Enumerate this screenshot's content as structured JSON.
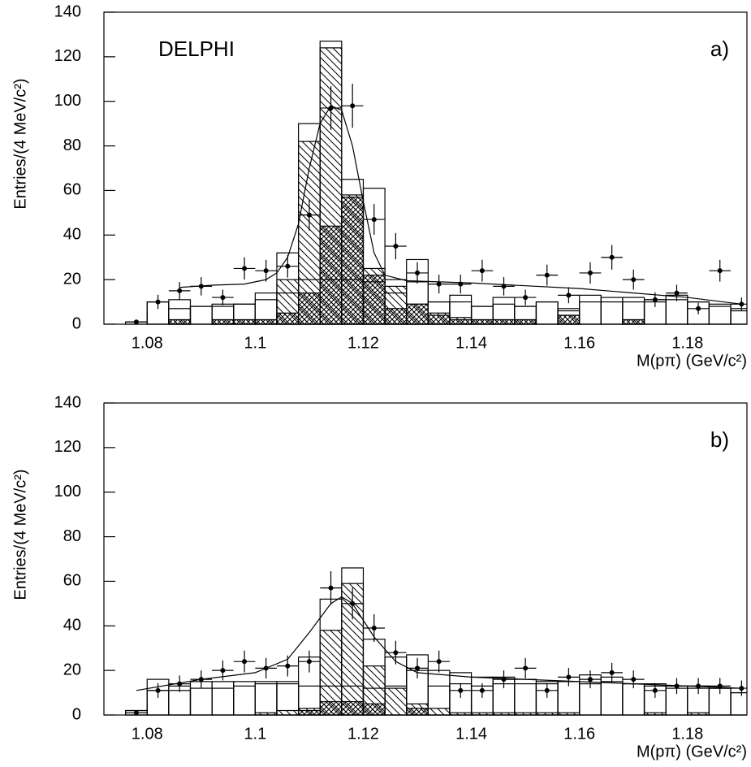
{
  "chart_data": [
    {
      "type": "histogram",
      "title": "DELPHI",
      "label": "a)",
      "xlabel": "M(pπ) (GeV/c²)",
      "ylabel": "Entries/(4 MeV/c²)",
      "xlim": [
        1.072,
        1.191
      ],
      "ylim": [
        0,
        140
      ],
      "xticks": [
        1.08,
        1.1,
        1.12,
        1.14,
        1.16,
        1.18
      ],
      "yticks": [
        0,
        20,
        40,
        60,
        80,
        100,
        120,
        140
      ],
      "bins": [
        1.076,
        1.08,
        1.084,
        1.088,
        1.092,
        1.096,
        1.1,
        1.104,
        1.108,
        1.112,
        1.116,
        1.12,
        1.124,
        1.128,
        1.132,
        1.136,
        1.14,
        1.144,
        1.148,
        1.152,
        1.156,
        1.16,
        1.164,
        1.168,
        1.172,
        1.176,
        1.18,
        1.184,
        1.188,
        1.192
      ],
      "series": [
        {
          "color": "#000000",
          "pattern": "none",
          "values": [
            1,
            10,
            11,
            8,
            9,
            9,
            14,
            32,
            90,
            127,
            65,
            61,
            20,
            29,
            10,
            13,
            8,
            12,
            8,
            10,
            7,
            13,
            12,
            10,
            11,
            13,
            10,
            9,
            7
          ]
        },
        {
          "color": "#000000",
          "pattern": "hatch",
          "values": [
            0,
            0,
            2,
            0,
            2,
            2,
            2,
            20,
            82,
            124,
            58,
            25,
            17,
            9,
            5,
            3,
            2,
            2,
            2,
            0,
            4,
            0,
            0,
            2,
            0,
            0,
            0,
            0,
            0
          ]
        },
        {
          "color": "#000000",
          "pattern": "cross",
          "values": [
            0,
            0,
            2,
            0,
            2,
            2,
            2,
            5,
            14,
            44,
            57,
            22,
            7,
            9,
            4,
            2,
            2,
            2,
            2,
            0,
            4,
            0,
            0,
            2,
            0,
            0,
            0,
            0,
            0
          ]
        },
        {
          "color": "#000000",
          "pattern": "none",
          "values": [
            0,
            10,
            7,
            8,
            8,
            9,
            11,
            14,
            20,
            20,
            20,
            19,
            14,
            19,
            10,
            10,
            8,
            9,
            8,
            10,
            6,
            10,
            10,
            12,
            10,
            11,
            10,
            8,
            6
          ]
        }
      ],
      "points": {
        "color": "#000000",
        "x": [
          1.078,
          1.082,
          1.086,
          1.09,
          1.094,
          1.098,
          1.102,
          1.106,
          1.11,
          1.114,
          1.118,
          1.122,
          1.126,
          1.13,
          1.134,
          1.138,
          1.142,
          1.146,
          1.15,
          1.154,
          1.158,
          1.162,
          1.166,
          1.17,
          1.174,
          1.178,
          1.182,
          1.186,
          1.19
        ],
        "values": [
          1,
          10,
          15,
          17,
          12,
          25,
          24,
          26,
          49,
          97,
          98,
          47,
          35,
          23,
          18,
          18,
          24,
          17,
          12,
          22,
          13,
          23,
          30,
          20,
          11,
          14,
          7,
          24,
          9
        ],
        "errors": [
          1,
          3.2,
          3.9,
          4.1,
          3.5,
          5,
          4.9,
          5.1,
          7,
          9.8,
          9.9,
          6.9,
          5.9,
          4.8,
          4.2,
          4.2,
          4.9,
          4.1,
          3.5,
          4.7,
          3.6,
          4.8,
          5.5,
          4.5,
          3.3,
          3.7,
          2.6,
          4.9,
          3
        ]
      },
      "fit": {
        "color": "#000000",
        "x": [
          1.086,
          1.092,
          1.098,
          1.102,
          1.104,
          1.106,
          1.108,
          1.11,
          1.112,
          1.114,
          1.116,
          1.118,
          1.12,
          1.122,
          1.124,
          1.128,
          1.14,
          1.16,
          1.17,
          1.18,
          1.19
        ],
        "values": [
          16.5,
          17.5,
          18,
          20,
          23,
          30,
          45,
          70,
          90,
          98,
          96,
          80,
          55,
          32,
          22,
          19.5,
          18.5,
          16,
          14,
          12,
          9
        ]
      }
    },
    {
      "type": "histogram",
      "label": "b)",
      "xlabel": "M(pπ) (GeV/c²)",
      "ylabel": "Entries/(4 MeV/c²)",
      "xlim": [
        1.072,
        1.191
      ],
      "ylim": [
        0,
        140
      ],
      "xticks": [
        1.08,
        1.1,
        1.12,
        1.14,
        1.16,
        1.18
      ],
      "yticks": [
        0,
        20,
        40,
        60,
        80,
        100,
        120,
        140
      ],
      "bins": [
        1.076,
        1.08,
        1.084,
        1.088,
        1.092,
        1.096,
        1.1,
        1.104,
        1.108,
        1.112,
        1.116,
        1.12,
        1.124,
        1.128,
        1.132,
        1.136,
        1.14,
        1.144,
        1.148,
        1.152,
        1.156,
        1.16,
        1.164,
        1.168,
        1.172,
        1.176,
        1.18,
        1.184,
        1.188,
        1.192
      ],
      "series": [
        {
          "color": "#000000",
          "pattern": "none",
          "values": [
            2,
            16,
            13,
            15,
            15,
            15,
            15,
            15,
            26,
            52,
            66,
            34,
            26,
            27,
            20,
            19,
            17,
            17,
            16,
            14,
            15,
            18,
            17,
            14,
            14,
            13,
            13,
            12,
            10
          ]
        },
        {
          "color": "#000000",
          "pattern": "hatch",
          "values": [
            0,
            0,
            0,
            0,
            0,
            0,
            1,
            2,
            3,
            38,
            59,
            22,
            12,
            5,
            3,
            1,
            1,
            1,
            1,
            1,
            1,
            0,
            0,
            0,
            1,
            0,
            1,
            0,
            0
          ]
        },
        {
          "color": "#000000",
          "pattern": "cross",
          "values": [
            0,
            0,
            0,
            0,
            0,
            0,
            0,
            0,
            2,
            6,
            6,
            5,
            0,
            3,
            0,
            0,
            0,
            0,
            0,
            0,
            0,
            0,
            0,
            0,
            0,
            0,
            0,
            0,
            0
          ]
        },
        {
          "color": "#000000",
          "pattern": "none",
          "values": [
            2,
            11,
            11,
            12,
            12,
            13,
            14,
            14,
            13,
            13,
            13,
            12,
            13,
            20,
            13,
            14,
            13,
            14,
            14,
            15,
            15,
            14,
            15,
            14,
            13,
            12,
            12,
            12,
            10
          ]
        }
      ],
      "points": {
        "color": "#000000",
        "x": [
          1.078,
          1.082,
          1.086,
          1.09,
          1.094,
          1.098,
          1.102,
          1.106,
          1.11,
          1.114,
          1.118,
          1.122,
          1.126,
          1.13,
          1.134,
          1.138,
          1.142,
          1.146,
          1.15,
          1.154,
          1.158,
          1.162,
          1.166,
          1.17,
          1.174,
          1.178,
          1.182,
          1.186,
          1.19
        ],
        "values": [
          1,
          11,
          14,
          16,
          20,
          24,
          21,
          22,
          24,
          57,
          50,
          39,
          28,
          21,
          24,
          11,
          11,
          16,
          21,
          11,
          17,
          16,
          19,
          16,
          11,
          13,
          13,
          13,
          12
        ],
        "errors": [
          1,
          3.3,
          3.7,
          4,
          4.5,
          4.9,
          4.6,
          4.7,
          4.9,
          7.5,
          7.1,
          6.2,
          5.3,
          4.6,
          4.9,
          3.3,
          3.3,
          4,
          4.6,
          3.3,
          4.1,
          4,
          4.4,
          4,
          3.3,
          3.6,
          3.6,
          3.6,
          3.5
        ]
      },
      "fit": {
        "color": "#000000",
        "x": [
          1.078,
          1.09,
          1.1,
          1.106,
          1.11,
          1.114,
          1.116,
          1.118,
          1.122,
          1.126,
          1.13,
          1.14,
          1.16,
          1.18,
          1.19
        ],
        "values": [
          11,
          16,
          19,
          25,
          37,
          50,
          53,
          50,
          35,
          24,
          19,
          17,
          15,
          13,
          12
        ]
      }
    }
  ]
}
